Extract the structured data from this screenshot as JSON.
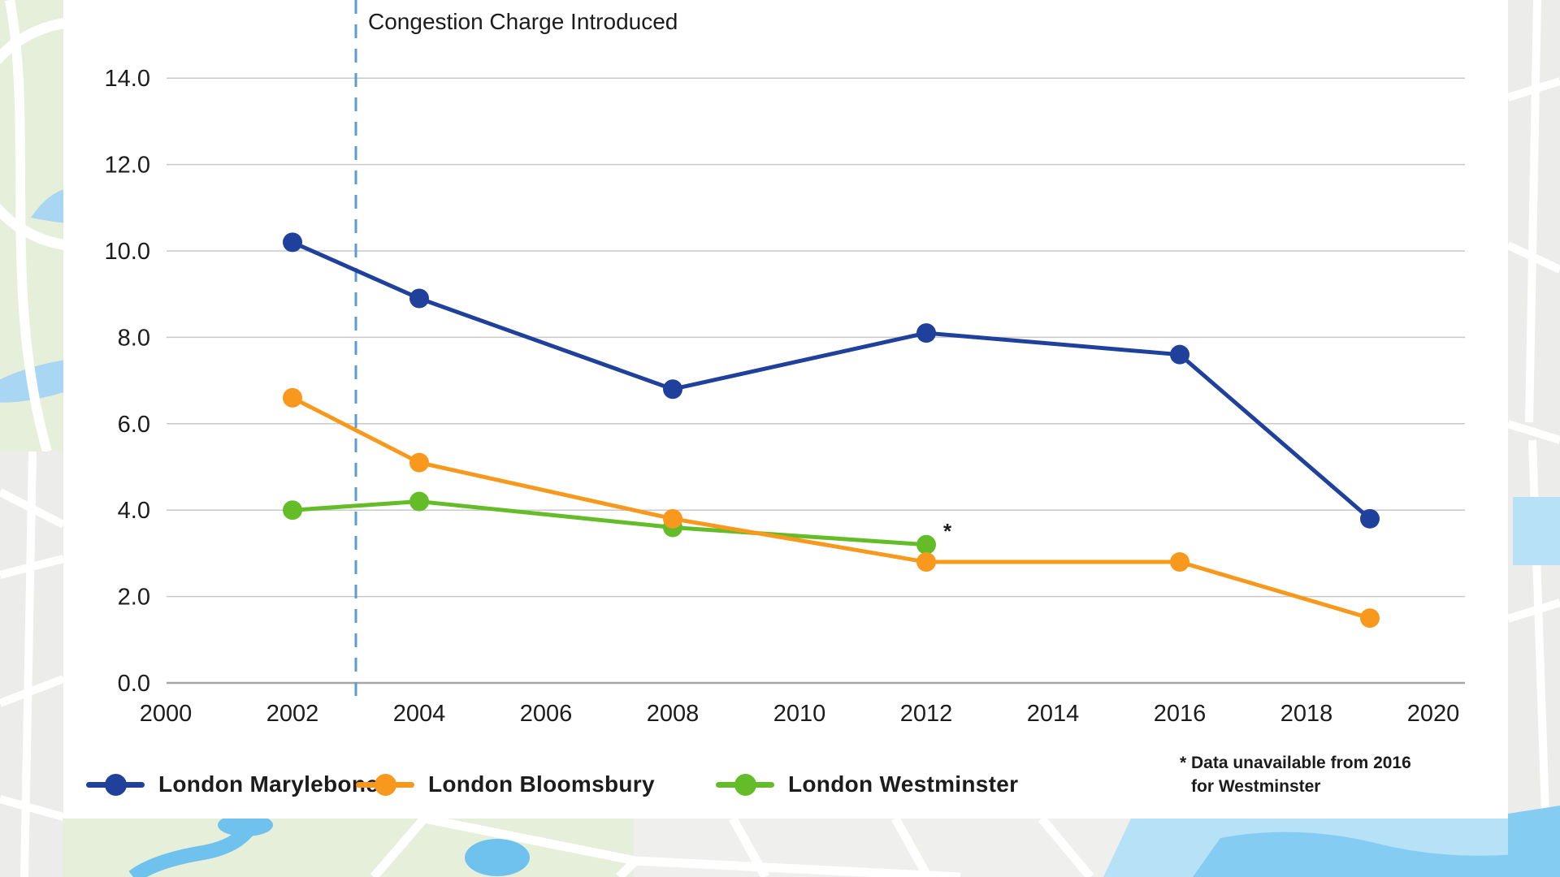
{
  "chart_data": {
    "type": "line",
    "title": "",
    "xlabel": "",
    "ylabel": "",
    "xlim": [
      2000,
      2020
    ],
    "ylim": [
      0,
      15
    ],
    "grid": "horizontal",
    "x_ticks": [
      2000,
      2002,
      2004,
      2006,
      2008,
      2010,
      2012,
      2014,
      2016,
      2018,
      2020
    ],
    "y_ticks": [
      0,
      2,
      4,
      6,
      8,
      10,
      12,
      14
    ],
    "y_tick_labels": [
      "0.0",
      "2.0",
      "4.0",
      "6.0",
      "8.0",
      "10.0",
      "12.0",
      "14.0"
    ],
    "event_line": {
      "x": 2003,
      "label": "Congestion Charge Introduced",
      "style": "dashed"
    },
    "series": [
      {
        "name": "London Marylebone",
        "color": "#1f419b",
        "points": [
          [
            2002,
            10.2
          ],
          [
            2004,
            8.9
          ],
          [
            2008,
            6.8
          ],
          [
            2012,
            8.1
          ],
          [
            2016,
            7.6
          ],
          [
            2019,
            3.8
          ]
        ]
      },
      {
        "name": "London Bloomsbury",
        "color": "#f8991d",
        "points": [
          [
            2002,
            6.6
          ],
          [
            2004,
            5.1
          ],
          [
            2008,
            3.8
          ],
          [
            2012,
            2.8
          ],
          [
            2016,
            2.8
          ],
          [
            2019,
            1.5
          ]
        ]
      },
      {
        "name": "London Westminster",
        "color": "#64bd28",
        "points": [
          [
            2002,
            4.0
          ],
          [
            2004,
            4.2
          ],
          [
            2008,
            3.6
          ],
          [
            2012,
            3.2
          ]
        ],
        "last_point_marker": "*"
      }
    ],
    "legend_position": "bottom",
    "footnote": {
      "line1": "* Data unavailable from 2016",
      "line2": "for Westminster"
    },
    "colors": {
      "grid": "#c9c9c9",
      "axis": "#a6a6a6",
      "event_line": "#5e9bd1",
      "text": "#1c1c1c",
      "panel": "#ffffff"
    }
  }
}
